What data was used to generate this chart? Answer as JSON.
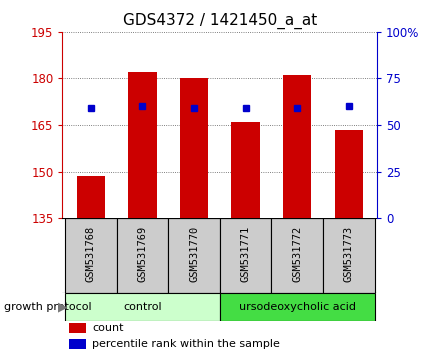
{
  "title": "GDS4372 / 1421450_a_at",
  "samples": [
    "GSM531768",
    "GSM531769",
    "GSM531770",
    "GSM531771",
    "GSM531772",
    "GSM531773"
  ],
  "bar_values": [
    148.5,
    182.0,
    180.0,
    166.0,
    181.0,
    163.5
  ],
  "percentile_values": [
    170.5,
    171.0,
    170.5,
    170.5,
    170.5,
    171.0
  ],
  "bar_bottom": 135,
  "ylim": [
    135,
    195
  ],
  "y_ticks": [
    135,
    150,
    165,
    180,
    195
  ],
  "y_tick_labels": [
    "135",
    "150",
    "165",
    "180",
    "195"
  ],
  "y2_ticks": [
    0,
    25,
    50,
    75,
    100
  ],
  "y2_tick_labels": [
    "0",
    "25",
    "50",
    "75",
    "100%"
  ],
  "bar_color": "#cc0000",
  "percentile_color": "#0000cc",
  "grid_color": "#555555",
  "control_samples": [
    0,
    1,
    2
  ],
  "treatment_samples": [
    3,
    4,
    5
  ],
  "control_label": "control",
  "treatment_label": "ursodeoxycholic acid",
  "control_bg": "#ccffcc",
  "treatment_bg": "#44dd44",
  "sample_label_bg": "#cccccc",
  "protocol_label": "growth protocol",
  "legend_count_label": "count",
  "legend_percentile_label": "percentile rank within the sample",
  "title_fontsize": 11,
  "tick_fontsize": 8.5,
  "label_fontsize": 7.5,
  "protocol_fontsize": 8
}
